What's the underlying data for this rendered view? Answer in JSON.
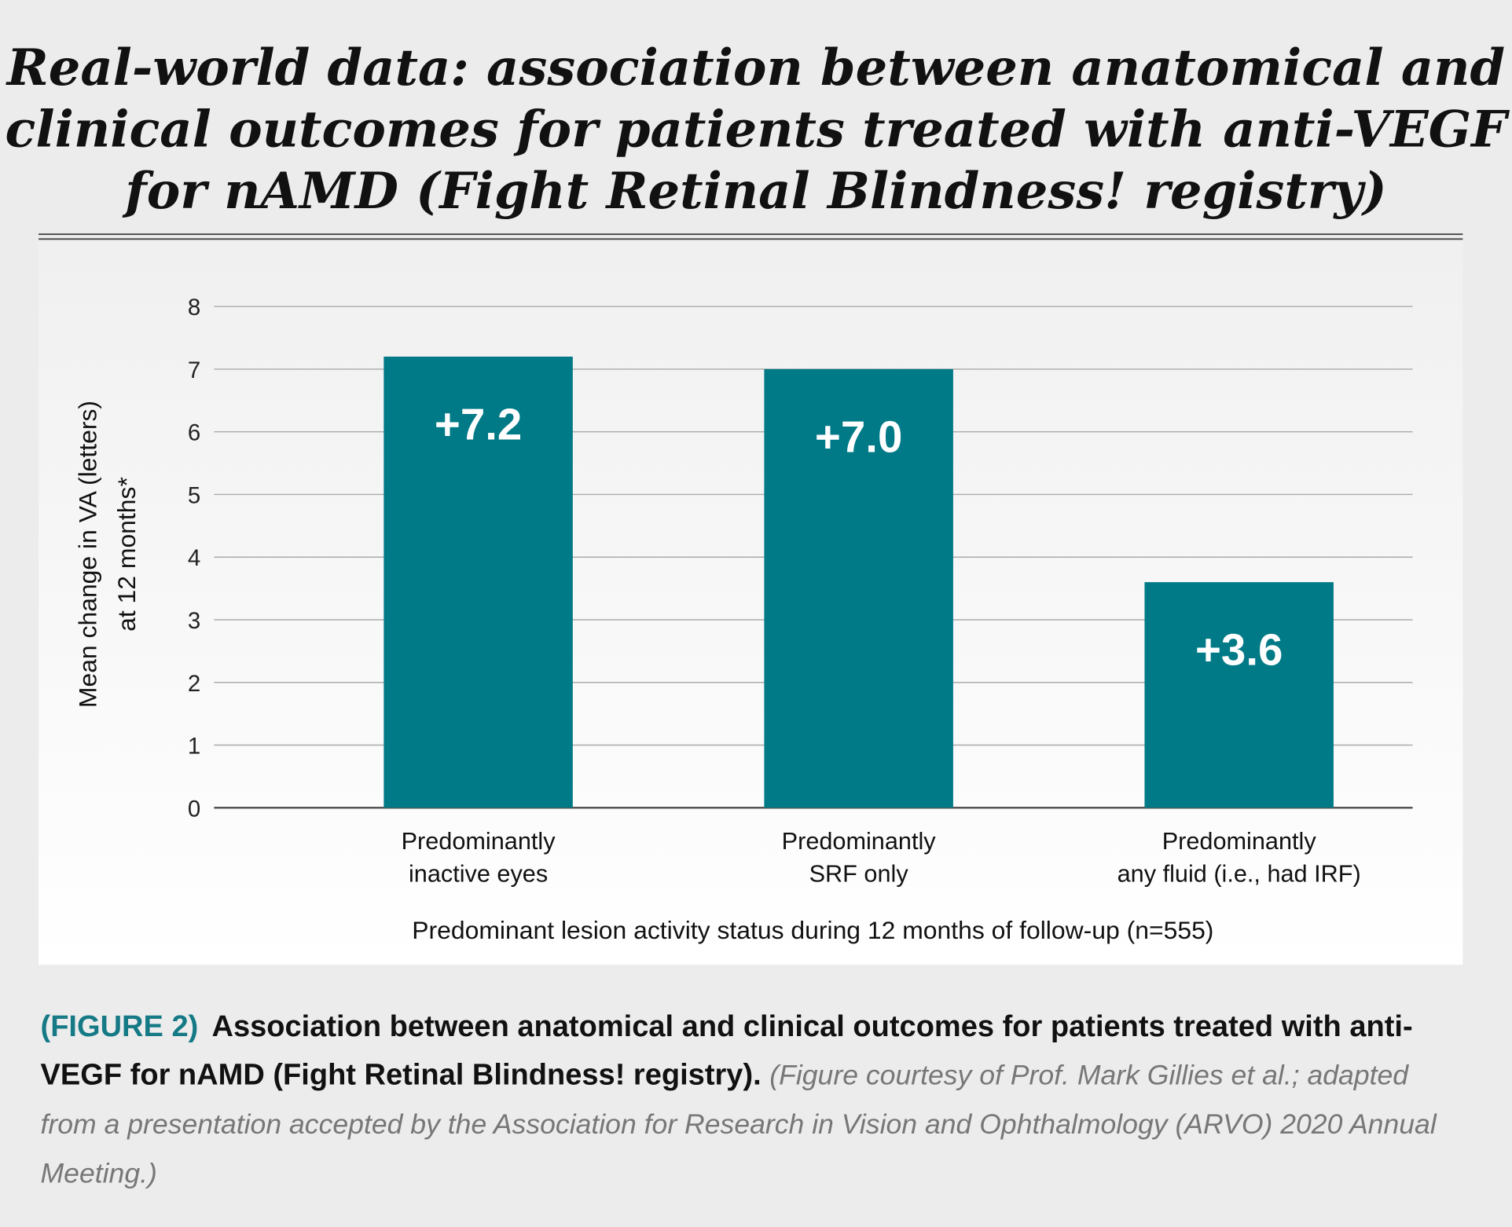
{
  "chart_data": {
    "type": "bar",
    "title": [
      "Real-world data: association between anatomical and",
      "clinical outcomes for patients treated with anti-VEGF",
      "for nAMD (Fight Retinal Blindness! registry)"
    ],
    "categories": [
      [
        "Predominantly",
        "inactive eyes"
      ],
      [
        "Predominantly",
        "SRF only"
      ],
      [
        "Predominantly",
        "any fluid (i.e., had IRF)"
      ]
    ],
    "values": [
      7.2,
      7.0,
      3.6
    ],
    "value_labels": [
      "+7.2",
      "+7.0",
      "+3.6"
    ],
    "color": "#007a87",
    "ylim": [
      0,
      8
    ],
    "yticks": [
      0,
      1,
      2,
      3,
      4,
      5,
      6,
      7,
      8
    ],
    "grid": true,
    "ylabel": [
      "Mean change in VA (letters)",
      "at 12 months*"
    ],
    "xlabel": "Predominant lesion activity status during 12 months of follow-up (n=555)"
  },
  "caption": {
    "label": "(FIGURE 2)",
    "text": "Association between anatomical and clinical outcomes for patients treated with anti-VEGF for nAMD (Fight Retinal Blindness! registry).",
    "credit": "(Figure courtesy of Prof. Mark Gillies et al.; adapted from a presentation accepted by the Association for Research in Vision and Ophthalmology (ARVO) 2020 Annual Meeting.)"
  }
}
